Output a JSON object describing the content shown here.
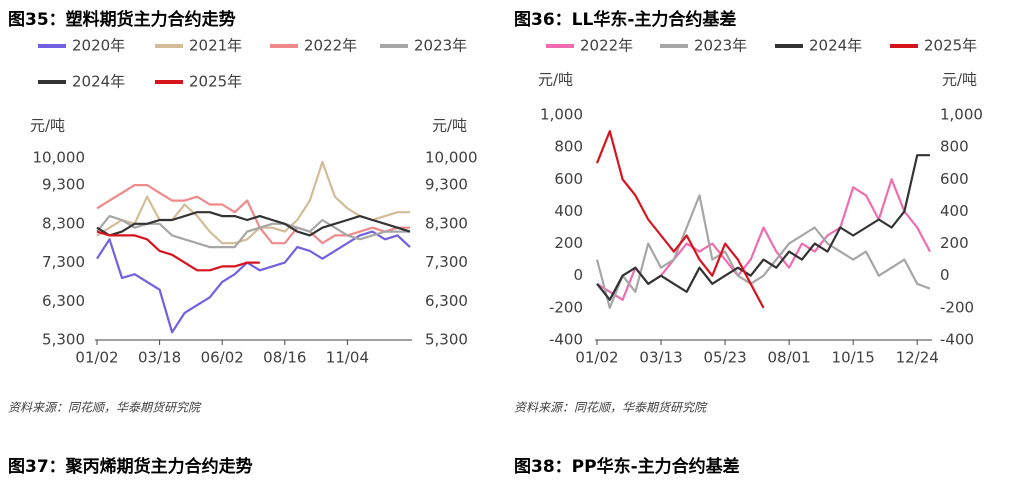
{
  "chart_data": [
    {
      "type": "line",
      "title": "图35：塑料期货主力合约走势",
      "y_unit": "元/吨",
      "y2_unit": "元/吨",
      "categories": [
        "01/02",
        null,
        null,
        null,
        null,
        "03/18",
        null,
        null,
        null,
        null,
        "06/02",
        null,
        null,
        null,
        null,
        "08/16",
        null,
        null,
        null,
        null,
        "11/04",
        null,
        null,
        null,
        null,
        null
      ],
      "ylim": [
        5300,
        10000
      ],
      "yticks": [
        {
          "value": 5300,
          "label": "5,300"
        },
        {
          "value": 6300,
          "label": "6,300"
        },
        {
          "value": 7300,
          "label": "7,300"
        },
        {
          "value": 8300,
          "label": "8,300"
        },
        {
          "value": 9300,
          "label": "9,300"
        },
        {
          "value": 10000,
          "label": "10,000"
        }
      ],
      "y2lim": [
        5300,
        10000
      ],
      "y2ticks": [
        {
          "value": 5300,
          "label": "5,300"
        },
        {
          "value": 6300,
          "label": "6,300"
        },
        {
          "value": 7300,
          "label": "7,300"
        },
        {
          "value": 8300,
          "label": "8,300"
        },
        {
          "value": 9300,
          "label": "9,300"
        },
        {
          "value": 10000,
          "label": "10,000"
        }
      ],
      "series": [
        {
          "name": "2020年",
          "color": "#7161e0",
          "values": [
            7400,
            7900,
            6900,
            7000,
            6800,
            6600,
            5500,
            6000,
            6200,
            6400,
            6800,
            7000,
            7300,
            7100,
            7200,
            7300,
            7700,
            7600,
            7400,
            7600,
            7800,
            8000,
            8100,
            7900,
            8000,
            7700
          ]
        },
        {
          "name": "2021年",
          "color": "#d4bc96",
          "values": [
            8000,
            8200,
            8400,
            8300,
            9000,
            8400,
            8400,
            8800,
            8500,
            8100,
            7800,
            7800,
            7900,
            8200,
            8200,
            8100,
            8400,
            8900,
            9900,
            9000,
            8700,
            8500,
            8400,
            8500,
            8600,
            8600
          ]
        },
        {
          "name": "2022年",
          "color": "#f08a8a",
          "values": [
            8700,
            8900,
            9100,
            9300,
            9300,
            9100,
            8900,
            8900,
            9000,
            8800,
            8800,
            8600,
            8900,
            8200,
            7800,
            7800,
            8200,
            8100,
            7800,
            8000,
            8000,
            8100,
            8200,
            8100,
            8200,
            8200
          ]
        },
        {
          "name": "2023年",
          "color": "#a6a6a6",
          "values": [
            8100,
            8500,
            8400,
            8200,
            8300,
            8300,
            8000,
            7900,
            7800,
            7700,
            7700,
            7700,
            8100,
            8200,
            8300,
            8300,
            8200,
            8100,
            8400,
            8200,
            8000,
            7900,
            8000,
            8100,
            8100,
            8100
          ]
        },
        {
          "name": "2024年",
          "color": "#333333",
          "values": [
            8200,
            8000,
            8100,
            8300,
            8300,
            8400,
            8400,
            8500,
            8600,
            8600,
            8500,
            8500,
            8400,
            8500,
            8400,
            8300,
            8100,
            8000,
            8200,
            8300,
            8400,
            8500,
            8400,
            8300,
            8200,
            8100
          ]
        },
        {
          "name": "2025年",
          "color": "#d7141e",
          "values": [
            8100,
            8000,
            8000,
            8000,
            7900,
            7600,
            7500,
            7300,
            7100,
            7100,
            7200,
            7200,
            7300,
            7300,
            null,
            null,
            null,
            null,
            null,
            null,
            null,
            null,
            null,
            null,
            null,
            null
          ]
        }
      ]
    },
    {
      "type": "line",
      "title": "图36：LL华东-主力合约基差",
      "y_unit": "元/吨",
      "y2_unit": "元/吨",
      "categories": [
        "01/02",
        null,
        null,
        null,
        null,
        "03/13",
        null,
        null,
        null,
        null,
        "05/23",
        null,
        null,
        null,
        null,
        "08/01",
        null,
        null,
        null,
        null,
        "10/15",
        null,
        null,
        null,
        null,
        "12/24",
        null
      ],
      "ylim": [
        -400,
        1000
      ],
      "yticks": [
        -400,
        -200,
        0,
        200,
        400,
        600,
        800,
        {
          "value": 1000,
          "label": "1,000"
        }
      ],
      "y2lim": [
        -400,
        1000
      ],
      "y2ticks": [
        -400,
        -200,
        0,
        200,
        400,
        600,
        800,
        {
          "value": 1000,
          "label": "1,000"
        }
      ],
      "series": [
        {
          "name": "2022年",
          "color": "#f06cb0",
          "values": [
            -50,
            -100,
            -150,
            50,
            -50,
            0,
            100,
            200,
            150,
            200,
            100,
            0,
            100,
            300,
            150,
            50,
            200,
            150,
            250,
            300,
            550,
            500,
            350,
            600,
            400,
            300,
            150
          ]
        },
        {
          "name": "2023年",
          "color": "#a6a6a6",
          "values": [
            100,
            -200,
            0,
            -100,
            200,
            50,
            100,
            300,
            500,
            100,
            150,
            0,
            -50,
            0,
            100,
            200,
            250,
            300,
            200,
            150,
            100,
            150,
            0,
            50,
            100,
            -50,
            -80
          ]
        },
        {
          "name": "2024年",
          "color": "#333333",
          "values": [
            -50,
            -150,
            0,
            50,
            -50,
            0,
            -50,
            -100,
            50,
            -50,
            0,
            50,
            0,
            100,
            50,
            150,
            100,
            200,
            150,
            300,
            250,
            300,
            350,
            300,
            400,
            750,
            750
          ]
        },
        {
          "name": "2025年",
          "color": "#d7141e",
          "values": [
            700,
            900,
            600,
            500,
            350,
            250,
            150,
            250,
            100,
            0,
            200,
            100,
            -50,
            -200,
            null,
            null,
            null,
            null,
            null,
            null,
            null,
            null,
            null,
            null,
            null,
            null,
            null
          ]
        }
      ]
    }
  ],
  "sources": [
    "资料来源：同花顺，华泰期货研究院",
    "资料来源：同花顺，华泰期货研究院"
  ],
  "next_titles": [
    "图37：聚丙烯期货主力合约走势",
    "图38：PP华东-主力合约基差"
  ]
}
